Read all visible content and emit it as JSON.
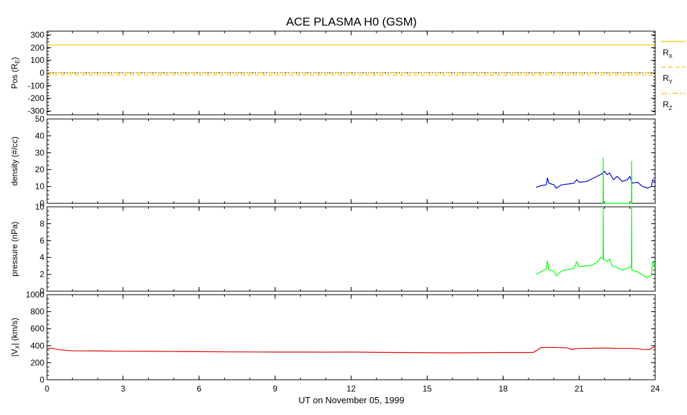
{
  "chart_data": {
    "type": "line",
    "title": "ACE PLASMA H0 (GSM)",
    "xlabel": "UT on November 05, 1999",
    "x_range": [
      0,
      24
    ],
    "x_ticks": [
      "0",
      "3",
      "6",
      "9",
      "12",
      "15",
      "18",
      "21",
      "24"
    ],
    "colors": {
      "orange": "#ffc000",
      "blue": "#0000cc",
      "green": "#00ff00",
      "red": "#e00000"
    },
    "panels": [
      {
        "id": "pos",
        "ylabel_main": "Pos (R",
        "ylabel_sub": "E",
        "ylabel_end": ")",
        "ylim": [
          -330,
          330
        ],
        "y_ticks": [
          "300",
          "200",
          "100",
          "0",
          "-100",
          "-200",
          "-300"
        ],
        "legend": [
          {
            "main": "R",
            "sub": "X",
            "style": "solid"
          },
          {
            "main": "R",
            "sub": "Y",
            "style": "dash"
          },
          {
            "main": "R",
            "sub": "Z",
            "style": "dashdot"
          }
        ],
        "series": [
          {
            "name": "RX",
            "color": "#ffc000",
            "style": "solid",
            "points": [
              [
                0,
                222
              ],
              [
                24,
                222
              ]
            ]
          },
          {
            "name": "RY",
            "color": "#ffc000",
            "style": "dash",
            "points": [
              [
                0,
                -14
              ],
              [
                3,
                -16
              ],
              [
                6,
                -15
              ],
              [
                9,
                -17
              ],
              [
                12,
                -16
              ],
              [
                15,
                -18
              ],
              [
                18,
                -17
              ],
              [
                21,
                -16
              ],
              [
                24,
                -17
              ]
            ]
          },
          {
            "name": "RZ",
            "color": "#ffc000",
            "style": "dashdot",
            "points": [
              [
                0,
                2
              ],
              [
                24,
                2
              ]
            ]
          }
        ]
      },
      {
        "id": "density",
        "ylabel": "density (#/cc)",
        "ylim": [
          0,
          50
        ],
        "y_ticks": [
          "50",
          "40",
          "30",
          "20",
          "10",
          "0"
        ],
        "series": [
          {
            "name": "density",
            "color": "#0000cc",
            "points": [
              [
                19.3,
                9.5
              ],
              [
                19.5,
                10.5
              ],
              [
                19.7,
                11
              ],
              [
                19.75,
                15
              ],
              [
                19.8,
                12
              ],
              [
                20.0,
                11
              ],
              [
                20.1,
                9
              ],
              [
                20.3,
                11
              ],
              [
                20.6,
                11.5
              ],
              [
                20.8,
                12
              ],
              [
                20.9,
                14
              ],
              [
                21.0,
                12.5
              ],
              [
                21.3,
                13
              ],
              [
                21.5,
                14.5
              ],
              [
                21.7,
                16
              ],
              [
                21.9,
                17.5
              ],
              [
                22.0,
                19
              ],
              [
                22.1,
                17
              ],
              [
                22.2,
                18
              ],
              [
                22.35,
                14
              ],
              [
                22.5,
                16
              ],
              [
                22.7,
                13
              ],
              [
                22.9,
                14
              ],
              [
                23.0,
                16
              ],
              [
                23.1,
                12
              ],
              [
                23.3,
                12.5
              ],
              [
                23.5,
                10
              ],
              [
                23.7,
                9
              ],
              [
                23.85,
                10
              ],
              [
                23.9,
                14
              ],
              [
                24.0,
                13
              ]
            ]
          },
          {
            "name": "density-alpha",
            "color": "#00ff00",
            "points": [
              [
                21.94,
                0
              ],
              [
                21.95,
                27
              ],
              [
                21.96,
                0
              ],
              [
                23.06,
                0
              ],
              [
                23.07,
                25
              ],
              [
                23.08,
                0
              ]
            ]
          }
        ]
      },
      {
        "id": "pressure",
        "ylabel": "pressure (nPa)",
        "ylim": [
          0,
          10
        ],
        "y_ticks": [
          "10",
          "8",
          "6",
          "4",
          "2",
          "0"
        ],
        "series": [
          {
            "name": "pressure",
            "color": "#00ff00",
            "points": [
              [
                19.3,
                2.0
              ],
              [
                19.5,
                2.3
              ],
              [
                19.7,
                2.6
              ],
              [
                19.75,
                3.6
              ],
              [
                19.8,
                2.5
              ],
              [
                20.0,
                2.4
              ],
              [
                20.1,
                1.8
              ],
              [
                20.3,
                2.4
              ],
              [
                20.6,
                2.6
              ],
              [
                20.8,
                2.7
              ],
              [
                20.9,
                3.5
              ],
              [
                21.0,
                2.9
              ],
              [
                21.3,
                3.0
              ],
              [
                21.5,
                3.1
              ],
              [
                21.7,
                3.4
              ],
              [
                21.85,
                4.0
              ],
              [
                21.94,
                3.8
              ],
              [
                21.95,
                10.0
              ],
              [
                21.96,
                3.8
              ],
              [
                22.1,
                3.5
              ],
              [
                22.2,
                3.8
              ],
              [
                22.3,
                3.0
              ],
              [
                22.5,
                2.8
              ],
              [
                22.7,
                2.5
              ],
              [
                22.9,
                2.7
              ],
              [
                23.0,
                2.9
              ],
              [
                23.06,
                2.8
              ],
              [
                23.07,
                10.0
              ],
              [
                23.08,
                2.5
              ],
              [
                23.3,
                2.3
              ],
              [
                23.5,
                1.9
              ],
              [
                23.7,
                1.6
              ],
              [
                23.85,
                1.9
              ],
              [
                23.9,
                3.5
              ],
              [
                24.0,
                3.0
              ]
            ]
          }
        ]
      },
      {
        "id": "vx",
        "ylabel_main": "|V",
        "ylabel_sub": "X",
        "ylabel_end": "| (km/s)",
        "ylim": [
          0,
          1000
        ],
        "y_ticks": [
          "1000",
          "800",
          "600",
          "400",
          "200",
          "0"
        ],
        "series": [
          {
            "name": "Vx",
            "color": "#e00000",
            "points": [
              [
                0,
                370
              ],
              [
                0.2,
                368
              ],
              [
                0.5,
                352
              ],
              [
                1.0,
                340
              ],
              [
                2.0,
                338
              ],
              [
                3.0,
                335
              ],
              [
                4.0,
                334
              ],
              [
                5.0,
                332
              ],
              [
                6.0,
                330
              ],
              [
                7.0,
                328
              ],
              [
                8.0,
                327
              ],
              [
                9.0,
                325
              ],
              [
                10.0,
                325
              ],
              [
                11.0,
                324
              ],
              [
                12.0,
                325
              ],
              [
                13.0,
                322
              ],
              [
                14.0,
                320
              ],
              [
                15.0,
                318
              ],
              [
                16.0,
                316
              ],
              [
                17.0,
                318
              ],
              [
                18.0,
                320
              ],
              [
                19.0,
                320
              ],
              [
                19.2,
                322
              ],
              [
                19.3,
                340
              ],
              [
                19.5,
                378
              ],
              [
                20.0,
                380
              ],
              [
                20.5,
                376
              ],
              [
                20.7,
                358
              ],
              [
                21.0,
                368
              ],
              [
                21.5,
                370
              ],
              [
                22.0,
                372
              ],
              [
                22.5,
                368
              ],
              [
                23.0,
                368
              ],
              [
                23.3,
                364
              ],
              [
                23.5,
                356
              ],
              [
                23.8,
                355
              ],
              [
                23.9,
                378
              ],
              [
                24.0,
                385
              ]
            ]
          }
        ]
      }
    ]
  }
}
